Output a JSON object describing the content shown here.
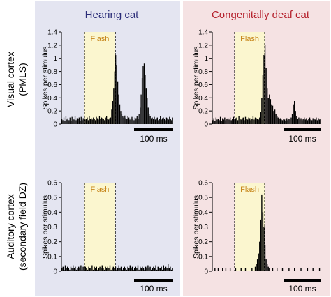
{
  "figure": {
    "columns": [
      {
        "title": "Hearing cat",
        "bg_color": "#e4e5f1",
        "title_color": "#2a2c78"
      },
      {
        "title": "Congenitally deaf cat",
        "bg_color": "#f5e2e3",
        "title_color": "#b5202c"
      }
    ],
    "rows": [
      {
        "label_line1": "Visual cortex",
        "label_line2": "(PMLS)"
      },
      {
        "label_line1": "Auditory cortex",
        "label_line2": "(secondary field DZ)"
      }
    ],
    "ylabel": "Spikes per stimulus",
    "flash_label": "Flash",
    "flash_fill": "#fbf6cf",
    "flash_text_color": "#c7861a",
    "scale_bar_label": "100 ms",
    "bar_color": "#000000"
  },
  "chart_data": [
    {
      "type": "bar",
      "title": "Hearing cat",
      "row": "Visual cortex (PMLS)",
      "ylabel": "Spikes per stimulus",
      "ylim": [
        0,
        1.4
      ],
      "yticks": [
        0,
        0.2,
        0.4,
        0.6,
        0.8,
        1.0,
        1.2,
        1.4
      ],
      "ytick_labels": [
        "0",
        "0.2",
        "0.4",
        "0.6",
        "0.8",
        "1",
        "1.2",
        "1.4"
      ],
      "x_range_ms": [
        0,
        355
      ],
      "flash_ms": [
        73,
        171
      ],
      "scale_bar_ms": 100,
      "values": [
        0.08,
        0.06,
        0.1,
        0.05,
        0.12,
        0.07,
        0.09,
        0.06,
        0.1,
        0.05,
        0.11,
        0.08,
        0.07,
        0.12,
        0.06,
        0.09,
        0.08,
        0.1,
        0.05,
        0.11,
        0.06,
        0.09,
        0.13,
        0.07,
        0.08,
        0.1,
        0.06,
        0.12,
        0.08,
        0.09,
        0.07,
        0.1,
        0.08,
        0.06,
        0.11,
        0.09,
        0.07,
        0.12,
        0.08,
        0.1,
        0.09,
        0.08,
        0.06,
        0.1,
        0.12,
        0.08,
        0.07,
        0.09,
        0.1,
        0.22,
        0.35,
        0.55,
        0.8,
        1.05,
        0.9,
        0.65,
        0.45,
        0.3,
        0.2,
        0.15,
        0.12,
        0.1,
        0.13,
        0.09,
        0.08,
        0.12,
        0.1,
        0.07,
        0.09,
        0.11,
        0.08,
        0.06,
        0.1,
        0.09,
        0.12,
        0.08,
        0.15,
        0.25,
        0.45,
        0.7,
        0.88,
        0.92,
        0.75,
        0.55,
        0.4,
        0.25,
        0.15,
        0.12,
        0.09,
        0.1,
        0.08,
        0.11,
        0.07,
        0.09,
        0.1,
        0.06,
        0.08,
        0.12,
        0.07,
        0.09,
        0.1,
        0.08,
        0.06,
        0.1,
        0.09,
        0.07,
        0.11,
        0.08,
        0.06,
        0.1
      ]
    },
    {
      "type": "bar",
      "title": "Congenitally deaf cat",
      "row": "Visual cortex (PMLS)",
      "ylabel": "Spikes per stimulus",
      "ylim": [
        0,
        1.4
      ],
      "yticks": [
        0,
        0.2,
        0.4,
        0.6,
        0.8,
        1.0,
        1.2,
        1.4
      ],
      "ytick_labels": [
        "0",
        "0.2",
        "0.4",
        "0.6",
        "0.8",
        "1",
        "1.2",
        "1.4"
      ],
      "x_range_ms": [
        0,
        355
      ],
      "flash_ms": [
        73,
        171
      ],
      "scale_bar_ms": 100,
      "values": [
        0.06,
        0.09,
        0.05,
        0.1,
        0.07,
        0.08,
        0.06,
        0.11,
        0.05,
        0.09,
        0.07,
        0.1,
        0.06,
        0.08,
        0.09,
        0.07,
        0.1,
        0.06,
        0.08,
        0.11,
        0.07,
        0.09,
        0.1,
        0.06,
        0.12,
        0.08,
        0.07,
        0.09,
        0.1,
        0.06,
        0.11,
        0.08,
        0.07,
        0.1,
        0.09,
        0.06,
        0.08,
        0.12,
        0.07,
        0.1,
        0.09,
        0.08,
        0.07,
        0.1,
        0.18,
        0.4,
        0.75,
        1.05,
        1.2,
        0.85,
        0.55,
        0.4,
        0.45,
        0.38,
        0.3,
        0.28,
        0.2,
        0.22,
        0.15,
        0.12,
        0.1,
        0.08,
        0.09,
        0.07,
        0.06,
        0.08,
        0.07,
        0.05,
        0.09,
        0.06,
        0.08,
        0.07,
        0.1,
        0.15,
        0.3,
        0.35,
        0.2,
        0.12,
        0.08,
        0.1,
        0.07,
        0.09,
        0.06,
        0.08,
        0.1,
        0.07,
        0.09,
        0.06,
        0.08,
        0.1,
        0.07,
        0.06,
        0.09,
        0.08,
        0.07,
        0.1,
        0.06,
        0.09,
        0.07,
        0.08
      ]
    },
    {
      "type": "bar",
      "title": "Hearing cat",
      "row": "Auditory cortex (secondary field DZ)",
      "ylabel": "Spikes per stimulus",
      "ylim": [
        0,
        0.6
      ],
      "yticks": [
        0,
        0.1,
        0.2,
        0.3,
        0.4,
        0.5,
        0.6
      ],
      "ytick_labels": [
        "0",
        "0.1",
        "0.2",
        "0.3",
        "0.4",
        "0.5",
        "0.6"
      ],
      "x_range_ms": [
        0,
        355
      ],
      "flash_ms": [
        73,
        171
      ],
      "scale_bar_ms": 100,
      "values": [
        0.02,
        0.03,
        0.01,
        0.04,
        0.02,
        0.03,
        0.02,
        0.01,
        0.03,
        0.02,
        0.04,
        0.02,
        0.03,
        0.01,
        0.02,
        0.03,
        0.02,
        0.04,
        0.01,
        0.03,
        0.02,
        0.03,
        0.02,
        0.01,
        0.03,
        0.02,
        0.02,
        0.04,
        0.01,
        0.03,
        0.02,
        0.03,
        0.01,
        0.02,
        0.03,
        0.02,
        0.04,
        0.02,
        0.01,
        0.03,
        0.02,
        0.03,
        0.02,
        0.04,
        0.01,
        0.02,
        0.03,
        0.02,
        0.03,
        0.01,
        0.02,
        0.04,
        0.02,
        0.03,
        0.01,
        0.02,
        0.03,
        0.02,
        0.01,
        0.03,
        0.02,
        0.04,
        0.02,
        0.03,
        0.01,
        0.02,
        0.03,
        0.02,
        0.04,
        0.01,
        0.03,
        0.02,
        0.03,
        0.02,
        0.01,
        0.03,
        0.02,
        0.04,
        0.02,
        0.03,
        0.01,
        0.02,
        0.03,
        0.02,
        0.04,
        0.01,
        0.03,
        0.02,
        0.02,
        0.03,
        0.01,
        0.04,
        0.02,
        0.03,
        0.02,
        0.05,
        0.02,
        0.03,
        0.01,
        0.02
      ]
    },
    {
      "type": "bar",
      "title": "Congenitally deaf cat",
      "row": "Auditory cortex (secondary field DZ)",
      "ylabel": "Spikes per stimulus",
      "ylim": [
        0,
        0.6
      ],
      "yticks": [
        0,
        0.1,
        0.2,
        0.3,
        0.4,
        0.5,
        0.6
      ],
      "ytick_labels": [
        "0",
        "0.1",
        "0.2",
        "0.3",
        "0.4",
        "0.5",
        "0.6"
      ],
      "x_range_ms": [
        0,
        355
      ],
      "flash_ms": [
        73,
        171
      ],
      "scale_bar_ms": 100,
      "values": [
        0,
        0,
        0.02,
        0,
        0,
        0.02,
        0,
        0,
        0,
        0.02,
        0,
        0,
        0.02,
        0,
        0,
        0,
        0.02,
        0,
        0,
        0,
        0,
        0.02,
        0,
        0,
        0,
        0,
        0.02,
        0,
        0,
        0,
        0.02,
        0,
        0,
        0,
        0,
        0,
        0.02,
        0,
        0,
        0.03,
        0.05,
        0.08,
        0.12,
        0.2,
        0.35,
        0.52,
        0.4,
        0.3,
        0.18,
        0.08,
        0.05,
        0.03,
        0.02,
        0,
        0,
        0.02,
        0,
        0,
        0,
        0.02,
        0,
        0,
        0,
        0,
        0.02,
        0,
        0,
        0,
        0,
        0,
        0.02,
        0,
        0,
        0,
        0,
        0.02,
        0,
        0,
        0,
        0,
        0,
        0.02,
        0,
        0,
        0,
        0,
        0,
        0.02,
        0,
        0,
        0,
        0,
        0.02,
        0,
        0,
        0,
        0,
        0,
        0.02,
        0
      ]
    }
  ]
}
